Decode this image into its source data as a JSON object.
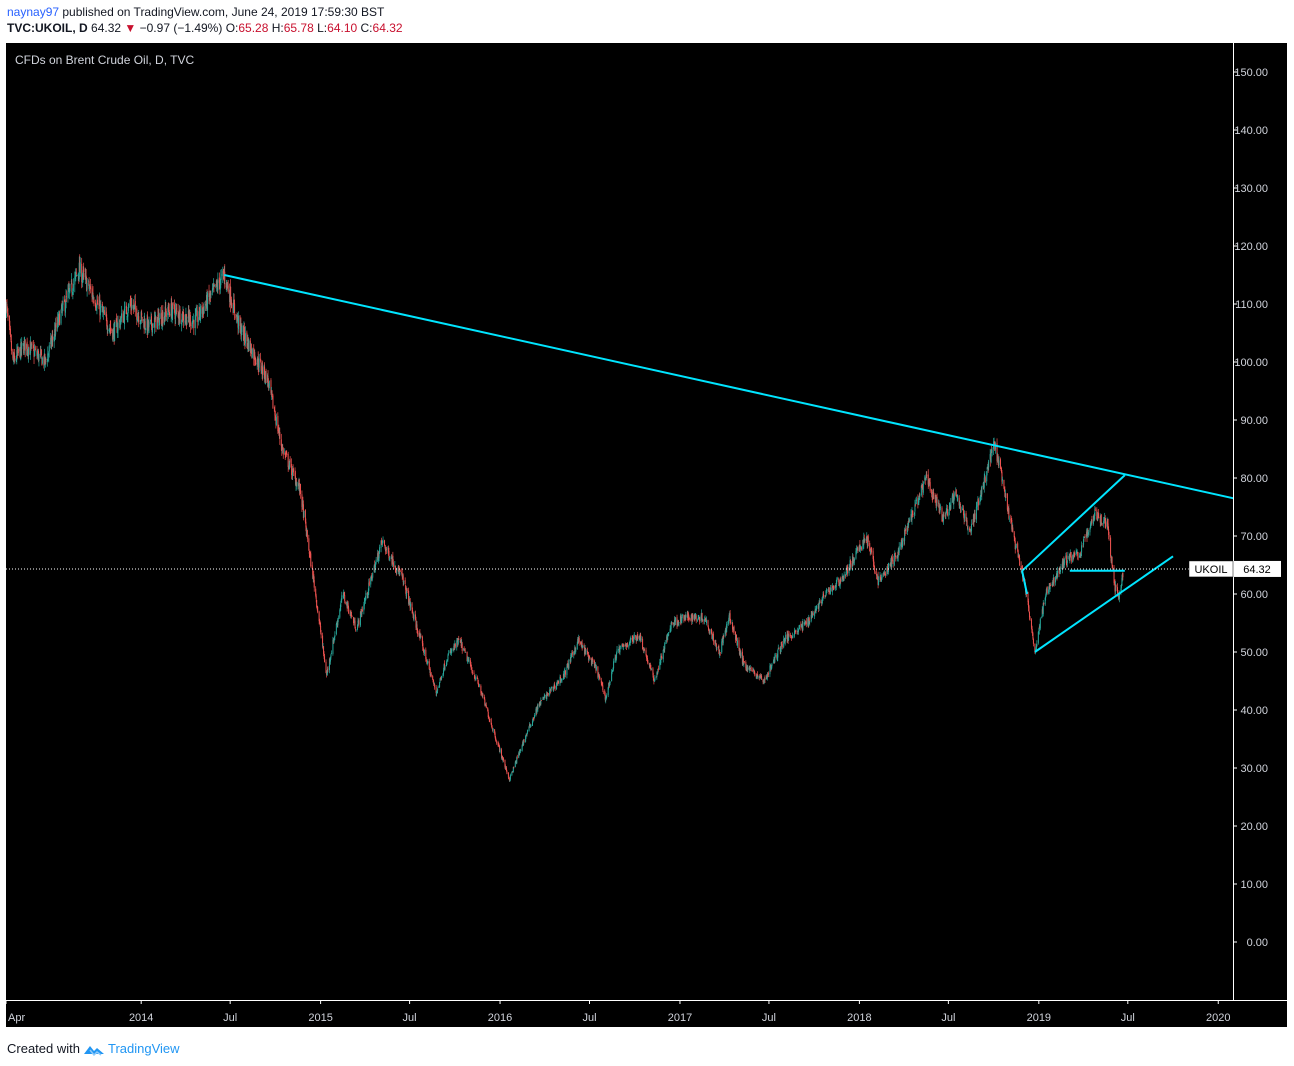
{
  "header": {
    "user": "naynay97",
    "published": " published on TradingView.com, June 24, 2019 17:59:30 BST",
    "symbol": "TVC:UKOIL, D",
    "last": "64.32",
    "change": "−0.97 (−1.49%)",
    "o_label": "O:",
    "o_value": "65.28",
    "h_label": "H:",
    "h_value": "65.78",
    "l_label": "L:",
    "l_value": "64.10",
    "c_label": "C:",
    "c_value": "64.32"
  },
  "footer": {
    "created": "Created with",
    "brand": "TradingView"
  },
  "colors": {
    "background": "#000000",
    "up": "#26a69a",
    "down": "#ef5350",
    "trendline": "#00e5ff",
    "axis_text": "#d1d4dc"
  },
  "chart_data": {
    "type": "candlestick",
    "title": "CFDs on Brent Crude Oil, D, TVC",
    "series_label": "UKOIL",
    "last_price": 64.32,
    "ylim": [
      -10,
      155
    ],
    "y_ticks": [
      0,
      10,
      20,
      30,
      40,
      50,
      60,
      70,
      80,
      90,
      100,
      110,
      120,
      130,
      140,
      150
    ],
    "y_tick_labels": [
      "0.00",
      "10.00",
      "20.00",
      "30.00",
      "40.00",
      "50.00",
      "60.00",
      "70.00",
      "80.00",
      "90.00",
      "100.00",
      "110.00",
      "120.00",
      "130.00",
      "140.00",
      "150.00"
    ],
    "xlim": [
      "2013-04-01",
      "2020-01-31"
    ],
    "x_ticks": [
      {
        "date": "2013-04-01",
        "label": "Apr"
      },
      {
        "date": "2014-01-01",
        "label": "2014"
      },
      {
        "date": "2014-07-01",
        "label": "Jul"
      },
      {
        "date": "2015-01-01",
        "label": "2015"
      },
      {
        "date": "2015-07-01",
        "label": "Jul"
      },
      {
        "date": "2016-01-01",
        "label": "2016"
      },
      {
        "date": "2016-07-01",
        "label": "Jul"
      },
      {
        "date": "2017-01-01",
        "label": "2017"
      },
      {
        "date": "2017-07-01",
        "label": "Jul"
      },
      {
        "date": "2018-01-01",
        "label": "2018"
      },
      {
        "date": "2018-07-01",
        "label": "Jul"
      },
      {
        "date": "2019-01-01",
        "label": "2019"
      },
      {
        "date": "2019-07-01",
        "label": "Jul"
      },
      {
        "date": "2020-01-01",
        "label": "2020"
      }
    ],
    "price_path": [
      {
        "date": "2013-04-01",
        "price": 110
      },
      {
        "date": "2013-04-15",
        "price": 100
      },
      {
        "date": "2013-05-10",
        "price": 103
      },
      {
        "date": "2013-06-20",
        "price": 100
      },
      {
        "date": "2013-07-20",
        "price": 108
      },
      {
        "date": "2013-08-28",
        "price": 116
      },
      {
        "date": "2013-10-10",
        "price": 109
      },
      {
        "date": "2013-11-05",
        "price": 105
      },
      {
        "date": "2013-12-10",
        "price": 110
      },
      {
        "date": "2014-01-15",
        "price": 106
      },
      {
        "date": "2014-03-01",
        "price": 109
      },
      {
        "date": "2014-04-20",
        "price": 107
      },
      {
        "date": "2014-06-19",
        "price": 115
      },
      {
        "date": "2014-07-20",
        "price": 106
      },
      {
        "date": "2014-09-15",
        "price": 97
      },
      {
        "date": "2014-10-15",
        "price": 85
      },
      {
        "date": "2014-11-20",
        "price": 78
      },
      {
        "date": "2014-12-20",
        "price": 61
      },
      {
        "date": "2015-01-13",
        "price": 46
      },
      {
        "date": "2015-02-15",
        "price": 60
      },
      {
        "date": "2015-03-15",
        "price": 54
      },
      {
        "date": "2015-05-06",
        "price": 69
      },
      {
        "date": "2015-06-15",
        "price": 63
      },
      {
        "date": "2015-08-24",
        "price": 43
      },
      {
        "date": "2015-09-15",
        "price": 49
      },
      {
        "date": "2015-10-10",
        "price": 52
      },
      {
        "date": "2015-11-20",
        "price": 44
      },
      {
        "date": "2015-12-20",
        "price": 36
      },
      {
        "date": "2016-01-20",
        "price": 28
      },
      {
        "date": "2016-02-15",
        "price": 34
      },
      {
        "date": "2016-03-20",
        "price": 41
      },
      {
        "date": "2016-05-10",
        "price": 46
      },
      {
        "date": "2016-06-08",
        "price": 52
      },
      {
        "date": "2016-07-15",
        "price": 47
      },
      {
        "date": "2016-08-03",
        "price": 42
      },
      {
        "date": "2016-08-25",
        "price": 50
      },
      {
        "date": "2016-10-10",
        "price": 53
      },
      {
        "date": "2016-11-10",
        "price": 45
      },
      {
        "date": "2016-12-15",
        "price": 55
      },
      {
        "date": "2017-01-15",
        "price": 56
      },
      {
        "date": "2017-02-20",
        "price": 56
      },
      {
        "date": "2017-03-22",
        "price": 50
      },
      {
        "date": "2017-04-12",
        "price": 56
      },
      {
        "date": "2017-05-10",
        "price": 48
      },
      {
        "date": "2017-06-21",
        "price": 45
      },
      {
        "date": "2017-07-31",
        "price": 52
      },
      {
        "date": "2017-09-15",
        "price": 55
      },
      {
        "date": "2017-10-25",
        "price": 60
      },
      {
        "date": "2017-11-30",
        "price": 63
      },
      {
        "date": "2018-01-15",
        "price": 70
      },
      {
        "date": "2018-02-09",
        "price": 62
      },
      {
        "date": "2018-03-20",
        "price": 67
      },
      {
        "date": "2018-05-17",
        "price": 80
      },
      {
        "date": "2018-06-20",
        "price": 73
      },
      {
        "date": "2018-07-15",
        "price": 77
      },
      {
        "date": "2018-08-15",
        "price": 71
      },
      {
        "date": "2018-10-03",
        "price": 86
      },
      {
        "date": "2018-11-10",
        "price": 70
      },
      {
        "date": "2018-12-03",
        "price": 62
      },
      {
        "date": "2018-12-24",
        "price": 50
      },
      {
        "date": "2019-01-15",
        "price": 60
      },
      {
        "date": "2019-02-25",
        "price": 66
      },
      {
        "date": "2019-03-25",
        "price": 67
      },
      {
        "date": "2019-04-25",
        "price": 74
      },
      {
        "date": "2019-05-20",
        "price": 72
      },
      {
        "date": "2019-06-05",
        "price": 61
      },
      {
        "date": "2019-06-13",
        "price": 60
      },
      {
        "date": "2019-06-24",
        "price": 64.32
      }
    ],
    "drawings": [
      {
        "name": "long-term-resistance",
        "from": {
          "date": "2014-06-19",
          "price": 115
        },
        "to": {
          "date": "2020-02-01",
          "price": 76.5
        }
      },
      {
        "name": "flag-upper-line",
        "from": {
          "date": "2018-11-28",
          "price": 64
        },
        "to": {
          "date": "2019-06-25",
          "price": 80.5
        }
      },
      {
        "name": "flag-lower-line",
        "from": {
          "date": "2018-12-24",
          "price": 50
        },
        "to": {
          "date": "2019-10-01",
          "price": 66.5
        }
      },
      {
        "name": "flag-horizontal-line",
        "from": {
          "date": "2019-03-05",
          "price": 64
        },
        "to": {
          "date": "2019-06-25",
          "price": 64
        }
      },
      {
        "name": "flag-pole-left",
        "from": {
          "date": "2018-11-28",
          "price": 64
        },
        "to": {
          "date": "2018-12-08",
          "price": 60
        }
      }
    ]
  }
}
